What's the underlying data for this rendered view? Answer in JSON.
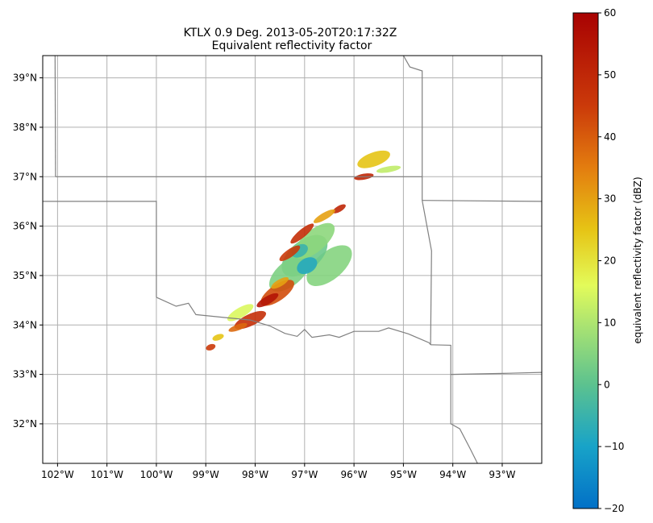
{
  "chart_data": [
    {
      "type": "heatmap",
      "title": "KTLX 0.9 Deg. 2013-05-20T20:17:32Z",
      "subtitle": "Equivalent reflectivity factor",
      "xlim": [
        -102.3,
        -92.2
      ],
      "ylim": [
        31.2,
        39.45
      ],
      "grid": true,
      "x_ticks": [
        -102,
        -101,
        -100,
        -99,
        -98,
        -97,
        -96,
        -95,
        -94,
        -93
      ],
      "x_tick_labels": [
        "102°W",
        "101°W",
        "100°W",
        "99°W",
        "98°W",
        "97°W",
        "96°W",
        "95°W",
        "94°W",
        "93°W"
      ],
      "y_ticks": [
        32,
        33,
        34,
        35,
        36,
        37,
        38,
        39
      ],
      "y_tick_labels": [
        "32°N",
        "33°N",
        "34°N",
        "35°N",
        "36°N",
        "37°N",
        "38°N",
        "39°N"
      ],
      "state_borders": [
        [
          [
            -102.05,
            39.45
          ],
          [
            -102.04,
            37.0
          ]
        ],
        [
          [
            -102.04,
            37.0
          ],
          [
            -94.62,
            37.0
          ]
        ],
        [
          [
            -102.3,
            36.5
          ],
          [
            -100.0,
            36.5
          ],
          [
            -100.0,
            34.56
          ]
        ],
        [
          [
            -100.0,
            34.56
          ],
          [
            -99.6,
            34.38
          ],
          [
            -99.35,
            34.44
          ],
          [
            -99.2,
            34.21
          ],
          [
            -98.6,
            34.15
          ],
          [
            -98.1,
            34.1
          ],
          [
            -97.7,
            33.98
          ],
          [
            -97.4,
            33.83
          ],
          [
            -97.15,
            33.77
          ],
          [
            -97.0,
            33.91
          ],
          [
            -96.85,
            33.75
          ],
          [
            -96.5,
            33.8
          ],
          [
            -96.3,
            33.75
          ],
          [
            -96.0,
            33.87
          ],
          [
            -95.5,
            33.87
          ],
          [
            -95.3,
            33.94
          ],
          [
            -94.9,
            33.82
          ],
          [
            -94.48,
            33.64
          ],
          [
            -94.45,
            33.6
          ]
        ],
        [
          [
            -94.45,
            33.6
          ],
          [
            -94.04,
            33.59
          ],
          [
            -94.04,
            32.0
          ],
          [
            -93.86,
            31.9
          ],
          [
            -93.65,
            31.5
          ],
          [
            -93.5,
            31.2
          ]
        ],
        [
          [
            -94.04,
            33.0
          ],
          [
            -93.0,
            33.02
          ],
          [
            -92.2,
            33.04
          ]
        ],
        [
          [
            -94.62,
            36.52
          ],
          [
            -92.2,
            36.5
          ]
        ],
        [
          [
            -95.0,
            39.45
          ],
          [
            -94.87,
            39.22
          ],
          [
            -94.62,
            39.14
          ],
          [
            -94.62,
            36.52
          ],
          [
            -94.43,
            35.5
          ],
          [
            -94.45,
            33.6
          ]
        ]
      ],
      "echoes": [
        {
          "lon": -96.5,
          "lat": 35.2,
          "rx": 0.55,
          "ry": 0.28,
          "angle": 40,
          "dbz": 5
        },
        {
          "lon": -97.0,
          "lat": 35.4,
          "rx": 0.55,
          "ry": 0.3,
          "angle": 40,
          "dbz": 2
        },
        {
          "lon": -97.3,
          "lat": 35.05,
          "rx": 0.5,
          "ry": 0.25,
          "angle": 40,
          "dbz": 4
        },
        {
          "lon": -96.8,
          "lat": 35.7,
          "rx": 0.5,
          "ry": 0.22,
          "angle": 40,
          "dbz": 6
        },
        {
          "lon": -96.95,
          "lat": 35.2,
          "rx": 0.22,
          "ry": 0.15,
          "angle": 30,
          "dbz": -8
        },
        {
          "lon": -97.1,
          "lat": 35.5,
          "rx": 0.18,
          "ry": 0.12,
          "angle": 30,
          "dbz": -5
        },
        {
          "lon": -98.1,
          "lat": 34.1,
          "rx": 0.35,
          "ry": 0.12,
          "angle": 25,
          "dbz": 48
        },
        {
          "lon": -97.55,
          "lat": 34.65,
          "rx": 0.4,
          "ry": 0.16,
          "angle": 35,
          "dbz": 42
        },
        {
          "lon": -97.3,
          "lat": 35.45,
          "rx": 0.25,
          "ry": 0.08,
          "angle": 35,
          "dbz": 45
        },
        {
          "lon": -97.05,
          "lat": 35.85,
          "rx": 0.3,
          "ry": 0.08,
          "angle": 40,
          "dbz": 48
        },
        {
          "lon": -96.3,
          "lat": 36.35,
          "rx": 0.15,
          "ry": 0.06,
          "angle": 30,
          "dbz": 50
        },
        {
          "lon": -96.6,
          "lat": 36.2,
          "rx": 0.25,
          "ry": 0.07,
          "angle": 30,
          "dbz": 30
        },
        {
          "lon": -95.8,
          "lat": 37.0,
          "rx": 0.2,
          "ry": 0.06,
          "angle": 10,
          "dbz": 50
        },
        {
          "lon": -95.6,
          "lat": 37.35,
          "rx": 0.35,
          "ry": 0.14,
          "angle": 20,
          "dbz": 25
        },
        {
          "lon": -95.3,
          "lat": 37.15,
          "rx": 0.25,
          "ry": 0.06,
          "angle": 10,
          "dbz": 12
        },
        {
          "lon": -98.9,
          "lat": 33.55,
          "rx": 0.1,
          "ry": 0.06,
          "angle": 20,
          "dbz": 45
        },
        {
          "lon": -98.75,
          "lat": 33.75,
          "rx": 0.12,
          "ry": 0.06,
          "angle": 20,
          "dbz": 25
        },
        {
          "lon": -98.3,
          "lat": 34.25,
          "rx": 0.3,
          "ry": 0.1,
          "angle": 30,
          "dbz": 15
        },
        {
          "lon": -97.75,
          "lat": 34.5,
          "rx": 0.25,
          "ry": 0.08,
          "angle": 30,
          "dbz": 55
        },
        {
          "lon": -97.5,
          "lat": 34.85,
          "rx": 0.2,
          "ry": 0.07,
          "angle": 30,
          "dbz": 30
        },
        {
          "lon": -98.35,
          "lat": 33.95,
          "rx": 0.2,
          "ry": 0.06,
          "angle": 20,
          "dbz": 38
        }
      ],
      "colorbar": {
        "label": "equivalent reflectivity factor (dBZ)",
        "min": -20,
        "max": 60,
        "ticks": [
          -20,
          -10,
          0,
          10,
          20,
          30,
          40,
          50,
          60
        ],
        "tick_labels": [
          "−20",
          "−10",
          "0",
          "10",
          "20",
          "30",
          "40",
          "50",
          "60"
        ],
        "stops": [
          {
            "value": -20,
            "color": "#0270c7"
          },
          {
            "value": -10,
            "color": "#18a3c8"
          },
          {
            "value": 0,
            "color": "#5cc28f"
          },
          {
            "value": 10,
            "color": "#aee570"
          },
          {
            "value": 16,
            "color": "#e3fb5a"
          },
          {
            "value": 25,
            "color": "#e6c415"
          },
          {
            "value": 35,
            "color": "#e37d0f"
          },
          {
            "value": 45,
            "color": "#cb3a0a"
          },
          {
            "value": 60,
            "color": "#a80202"
          }
        ]
      },
      "colors": {
        "grid": "#b0b0b0",
        "border": "#808080",
        "frame": "#000000"
      }
    }
  ]
}
